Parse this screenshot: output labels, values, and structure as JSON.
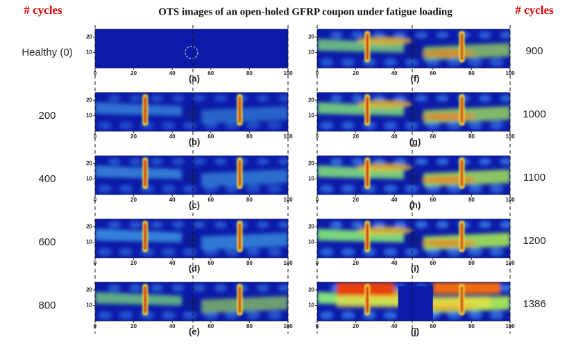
{
  "header": {
    "left_label": "# cycles",
    "title": "OTS images of an open-holed GFRP coupon under fatigue loading",
    "right_label": "# cycles"
  },
  "panels": [
    {
      "label": "(a)",
      "cycles": "Healthy (0)"
    },
    {
      "label": "(b)",
      "cycles": "200"
    },
    {
      "label": "(c)",
      "cycles": "400"
    },
    {
      "label": "(d)",
      "cycles": "600"
    },
    {
      "label": "(e)",
      "cycles": "800"
    },
    {
      "label": "(f)",
      "cycles": "900"
    },
    {
      "label": "(g)",
      "cycles": "1000"
    },
    {
      "label": "(h)",
      "cycles": "1100"
    },
    {
      "label": "(i)",
      "cycles": "1200"
    },
    {
      "label": "(j)",
      "cycles": "1386"
    }
  ],
  "axis": {
    "xticks": [
      0,
      20,
      40,
      60,
      80,
      100
    ],
    "yticks": [
      10,
      20
    ]
  }
}
